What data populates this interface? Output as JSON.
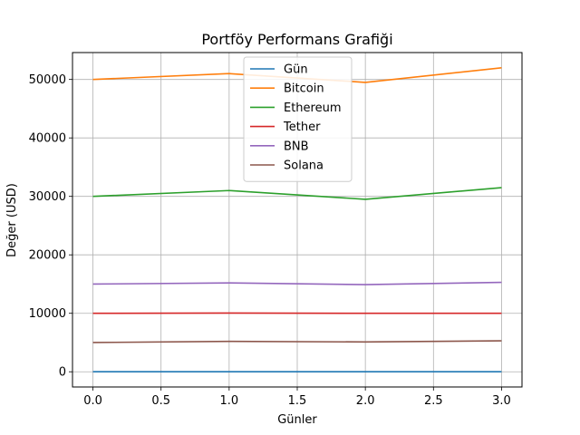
{
  "chart_data": {
    "type": "line",
    "title": "Portföy Performans Grafiği",
    "xlabel": "Günler",
    "ylabel": "Değer (USD)",
    "x": [
      0,
      1,
      2,
      3
    ],
    "xlim": [
      -0.15,
      3.15
    ],
    "ylim": [
      -2600,
      54600
    ],
    "xticks": [
      0.0,
      0.5,
      1.0,
      1.5,
      2.0,
      2.5,
      3.0
    ],
    "xtick_labels": [
      "0.0",
      "0.5",
      "1.0",
      "1.5",
      "2.0",
      "2.5",
      "3.0"
    ],
    "yticks": [
      0,
      10000,
      20000,
      30000,
      40000,
      50000
    ],
    "ytick_labels": [
      "0",
      "10000",
      "20000",
      "30000",
      "40000",
      "50000"
    ],
    "grid": true,
    "legend_position": "top-center",
    "series": [
      {
        "name": "Gün",
        "color": "#1f77b4",
        "values": [
          0,
          1,
          2,
          3
        ]
      },
      {
        "name": "Bitcoin",
        "color": "#ff7f0e",
        "values": [
          50000,
          51000,
          49500,
          52000
        ]
      },
      {
        "name": "Ethereum",
        "color": "#2ca02c",
        "values": [
          30000,
          31000,
          29500,
          31500
        ]
      },
      {
        "name": "Tether",
        "color": "#d62728",
        "values": [
          10000,
          10050,
          10000,
          10000
        ]
      },
      {
        "name": "BNB",
        "color": "#9467bd",
        "values": [
          15000,
          15200,
          14900,
          15300
        ]
      },
      {
        "name": "Solana",
        "color": "#8c564b",
        "values": [
          5000,
          5200,
          5100,
          5300
        ]
      }
    ]
  }
}
